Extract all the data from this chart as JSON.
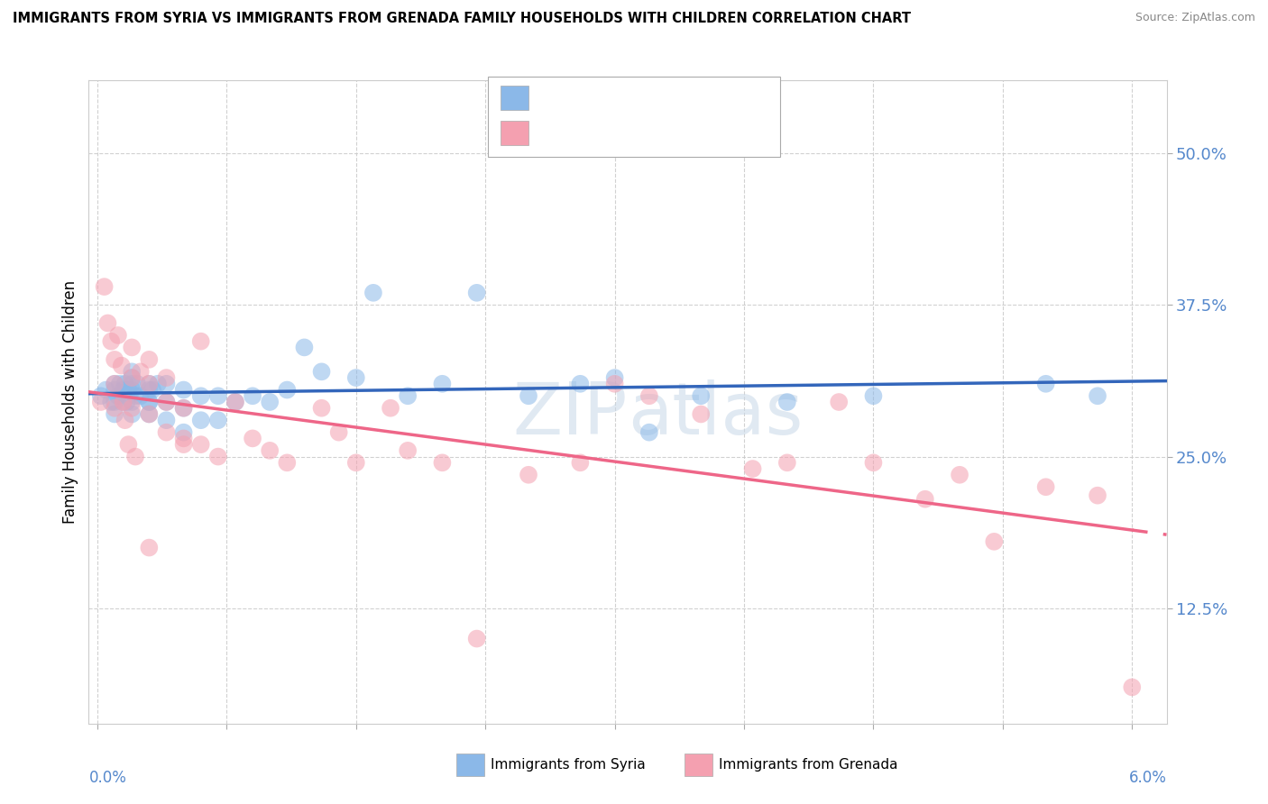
{
  "title": "IMMIGRANTS FROM SYRIA VS IMMIGRANTS FROM GRENADA FAMILY HOUSEHOLDS WITH CHILDREN CORRELATION CHART",
  "source": "Source: ZipAtlas.com",
  "ylabel": "Family Households with Children",
  "ytick_vals": [
    0.125,
    0.25,
    0.375,
    0.5
  ],
  "ylim": [
    0.03,
    0.56
  ],
  "xlim": [
    -0.0005,
    0.062
  ],
  "syria_color": "#8BB8E8",
  "grenada_color": "#F4A0B0",
  "syria_line_color": "#3366BB",
  "grenada_line_color": "#EE6688",
  "watermark_color": "#C8D8E8",
  "background_color": "#ffffff",
  "syria_points_x": [
    0.0002,
    0.0005,
    0.0008,
    0.001,
    0.001,
    0.001,
    0.001,
    0.0012,
    0.0013,
    0.0015,
    0.0015,
    0.0016,
    0.0017,
    0.0018,
    0.002,
    0.002,
    0.002,
    0.002,
    0.002,
    0.002,
    0.0022,
    0.0023,
    0.0025,
    0.003,
    0.003,
    0.003,
    0.003,
    0.003,
    0.0032,
    0.0035,
    0.004,
    0.004,
    0.004,
    0.005,
    0.005,
    0.005,
    0.006,
    0.006,
    0.007,
    0.007,
    0.008,
    0.009,
    0.01,
    0.011,
    0.012,
    0.013,
    0.015,
    0.016,
    0.018,
    0.02,
    0.022,
    0.025,
    0.028,
    0.03,
    0.032,
    0.035,
    0.04,
    0.045,
    0.055,
    0.058
  ],
  "syria_points_y": [
    0.3,
    0.305,
    0.295,
    0.285,
    0.295,
    0.305,
    0.31,
    0.3,
    0.31,
    0.295,
    0.305,
    0.31,
    0.295,
    0.305,
    0.285,
    0.295,
    0.305,
    0.31,
    0.315,
    0.32,
    0.3,
    0.31,
    0.3,
    0.285,
    0.295,
    0.305,
    0.31,
    0.295,
    0.305,
    0.31,
    0.28,
    0.295,
    0.31,
    0.27,
    0.29,
    0.305,
    0.28,
    0.3,
    0.28,
    0.3,
    0.295,
    0.3,
    0.295,
    0.305,
    0.34,
    0.32,
    0.315,
    0.385,
    0.3,
    0.31,
    0.385,
    0.3,
    0.31,
    0.315,
    0.27,
    0.3,
    0.295,
    0.3,
    0.31,
    0.3
  ],
  "grenada_points_x": [
    0.0002,
    0.0004,
    0.0006,
    0.0008,
    0.001,
    0.001,
    0.001,
    0.0012,
    0.0014,
    0.0015,
    0.0016,
    0.0018,
    0.002,
    0.002,
    0.002,
    0.0022,
    0.0025,
    0.003,
    0.003,
    0.003,
    0.003,
    0.004,
    0.004,
    0.004,
    0.005,
    0.005,
    0.005,
    0.006,
    0.006,
    0.007,
    0.008,
    0.009,
    0.01,
    0.011,
    0.013,
    0.014,
    0.015,
    0.017,
    0.018,
    0.02,
    0.022,
    0.025,
    0.028,
    0.03,
    0.032,
    0.035,
    0.038,
    0.04,
    0.043,
    0.045,
    0.048,
    0.05,
    0.052,
    0.055,
    0.058,
    0.06
  ],
  "grenada_points_y": [
    0.295,
    0.39,
    0.36,
    0.345,
    0.33,
    0.31,
    0.29,
    0.35,
    0.325,
    0.295,
    0.28,
    0.26,
    0.34,
    0.315,
    0.29,
    0.25,
    0.32,
    0.33,
    0.31,
    0.285,
    0.175,
    0.315,
    0.295,
    0.27,
    0.265,
    0.29,
    0.26,
    0.26,
    0.345,
    0.25,
    0.295,
    0.265,
    0.255,
    0.245,
    0.29,
    0.27,
    0.245,
    0.29,
    0.255,
    0.245,
    0.1,
    0.235,
    0.245,
    0.31,
    0.3,
    0.285,
    0.24,
    0.245,
    0.295,
    0.245,
    0.215,
    0.235,
    0.18,
    0.225,
    0.218,
    0.06
  ]
}
